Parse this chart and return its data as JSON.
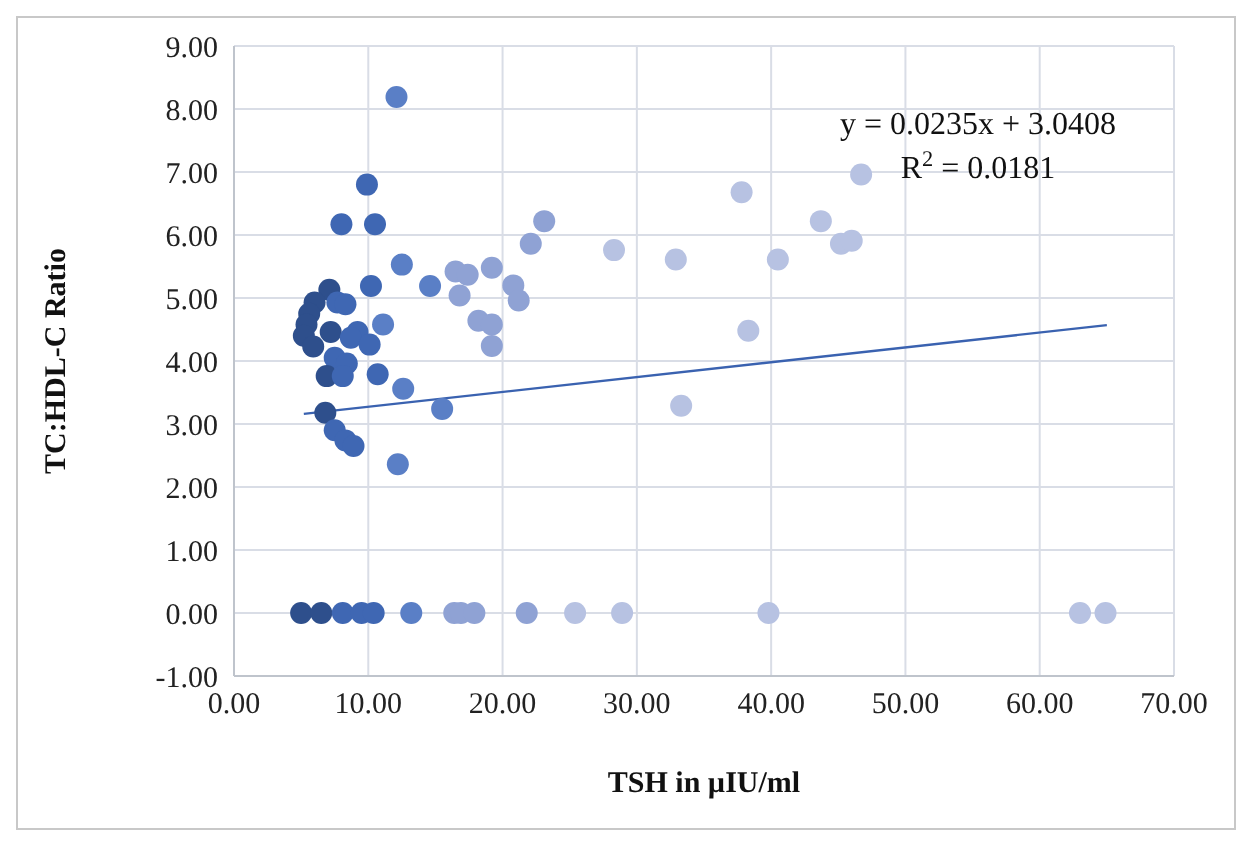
{
  "chart_data": {
    "type": "scatter",
    "xlabel": "TSH in µIU/ml",
    "ylabel": "TC:HDL-C Ratio",
    "xlim": [
      0,
      70
    ],
    "xticks": [
      {
        "value": 0,
        "label": "0.00"
      },
      {
        "value": 10,
        "label": "10.00"
      },
      {
        "value": 20,
        "label": "20.00"
      },
      {
        "value": 30,
        "label": "30.00"
      },
      {
        "value": 40,
        "label": "40.00"
      },
      {
        "value": 50,
        "label": "50.00"
      },
      {
        "value": 60,
        "label": "60.00"
      },
      {
        "value": 70,
        "label": "70.00"
      }
    ],
    "ylim": [
      -1,
      9
    ],
    "yticks": [
      {
        "value": -1,
        "label": "-1.00"
      },
      {
        "value": 0,
        "label": "0.00"
      },
      {
        "value": 1,
        "label": "1.00"
      },
      {
        "value": 2,
        "label": "2.00"
      },
      {
        "value": 3,
        "label": "3.00"
      },
      {
        "value": 4,
        "label": "4.00"
      },
      {
        "value": 5,
        "label": "5.00"
      },
      {
        "value": 6,
        "label": "6.00"
      },
      {
        "value": 7,
        "label": "7.00"
      },
      {
        "value": 8,
        "label": "8.00"
      },
      {
        "value": 9,
        "label": "9.00"
      }
    ],
    "grid": true,
    "annotations": [
      "y = 0.0235x + 3.0408",
      "R$^{2}$ = 0.0181"
    ],
    "series": [
      {
        "color": "#4472c4",
        "marker": "circle",
        "x": [
          12.1,
          9.9,
          8.0,
          10.5,
          12.5,
          14.6,
          10.2,
          7.1,
          6.0,
          7.7,
          8.3,
          5.6,
          5.4,
          5.2,
          7.2,
          9.2,
          8.7,
          11.1,
          10.1,
          5.9,
          7.5,
          8.4,
          6.9,
          8.1,
          10.7,
          12.6,
          15.5,
          6.8,
          7.5,
          8.3,
          8.9,
          12.2,
          16.5,
          17.4,
          16.8,
          19.2,
          20.8,
          21.2,
          18.2,
          19.2,
          19.2,
          22.1,
          23.1,
          28.3,
          32.9,
          37.8,
          43.7,
          40.5,
          45.2,
          46.0,
          46.7,
          38.3,
          33.3,
          5.0,
          6.5,
          8.1,
          9.5,
          10.4,
          13.2,
          16.4,
          16.9,
          17.9,
          21.8,
          25.4,
          28.9,
          39.8,
          63.0,
          64.9
        ],
        "values": [
          8.19,
          6.8,
          6.17,
          6.17,
          5.53,
          5.19,
          5.19,
          5.13,
          4.93,
          4.93,
          4.9,
          4.75,
          4.58,
          4.4,
          4.46,
          4.46,
          4.37,
          4.58,
          4.26,
          4.23,
          4.05,
          3.96,
          3.76,
          3.76,
          3.79,
          3.56,
          3.24,
          3.18,
          2.9,
          2.74,
          2.65,
          2.36,
          5.42,
          5.37,
          5.04,
          5.48,
          5.2,
          4.96,
          4.64,
          4.58,
          4.24,
          5.86,
          6.22,
          5.76,
          5.61,
          6.68,
          6.22,
          5.61,
          5.86,
          5.91,
          6.96,
          4.48,
          3.29,
          0,
          0,
          0,
          0,
          0,
          0,
          0,
          0,
          0,
          0,
          0,
          0,
          0,
          0,
          0
        ],
        "colors": [
          "#5a7fc6",
          "#3f67b3",
          "#3f67b3",
          "#3f67b3",
          "#5a7fc6",
          "#5a7fc6",
          "#3f67b3",
          "#2e4f8c",
          "#2e4f8c",
          "#3f67b3",
          "#3f67b3",
          "#2e4f8c",
          "#2e4f8c",
          "#2e4f8c",
          "#2e4f8c",
          "#3f67b3",
          "#3f67b3",
          "#5a7fc6",
          "#3f67b3",
          "#2e4f8c",
          "#3f67b3",
          "#3f67b3",
          "#2e4f8c",
          "#3f67b3",
          "#3f67b3",
          "#5a7fc6",
          "#5a7fc6",
          "#2e4f8c",
          "#3f67b3",
          "#3f67b3",
          "#3f67b3",
          "#5a7fc6",
          "#8fa2d4",
          "#8fa2d4",
          "#8fa2d4",
          "#8fa2d4",
          "#8fa2d4",
          "#8fa2d4",
          "#8fa2d4",
          "#8fa2d4",
          "#8fa2d4",
          "#8fa2d4",
          "#8fa2d4",
          "#b7c2e2",
          "#b7c2e2",
          "#b7c2e2",
          "#b7c2e2",
          "#b7c2e2",
          "#b7c2e2",
          "#b7c2e2",
          "#b7c2e2",
          "#b7c2e2",
          "#b7c2e2",
          "#2e4f8c",
          "#2e4f8c",
          "#3f67b3",
          "#3f67b3",
          "#3f67b3",
          "#5a7fc6",
          "#8fa2d4",
          "#8fa2d4",
          "#8fa2d4",
          "#8fa2d4",
          "#b7c2e2",
          "#b7c2e2",
          "#b7c2e2",
          "#b7c2e2",
          "#b7c2e2"
        ]
      },
      {
        "type": "line",
        "color": "#3a62b0",
        "x": [
          5.2,
          65
        ],
        "values": [
          3.16,
          4.57
        ],
        "line_style": "solid"
      }
    ]
  }
}
